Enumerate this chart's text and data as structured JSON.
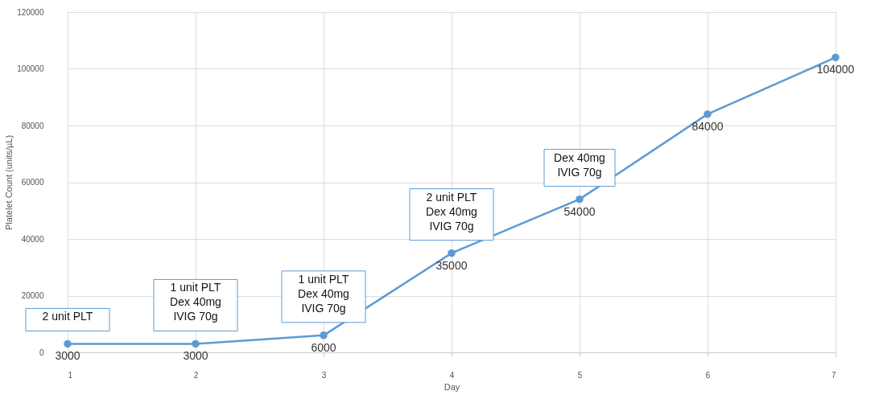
{
  "chart_data": {
    "type": "line",
    "xlabel": "Day",
    "ylabel": "Platelet Count (units/µL)",
    "x": [
      1,
      2,
      3,
      4,
      5,
      6,
      7
    ],
    "series": [
      {
        "color": "#5b9bd5",
        "values": [
          3000,
          3000,
          6000,
          35000,
          54000,
          84000,
          104000
        ]
      }
    ],
    "xlim": [
      1,
      7
    ],
    "xticks": [
      1,
      2,
      3,
      4,
      5,
      6,
      7
    ],
    "ylim": [
      0,
      120000
    ],
    "yticks": [
      0,
      20000,
      40000,
      60000,
      80000,
      100000,
      120000
    ],
    "grid": true,
    "legend": false,
    "marker": "circle",
    "line_style": "solid",
    "data_labels": true,
    "annotations": [
      {
        "text": "2 unit PLT",
        "x": 1,
        "y": 3000
      },
      {
        "text": "1 unit PLT\nDex 40mg\nIVIG 70g",
        "x": 2,
        "y": 3000
      },
      {
        "text": "1 unit PLT\nDex 40mg\nIVIG 70g",
        "x": 3,
        "y": 6000
      },
      {
        "text": "2 unit PLT\nDex 40mg\nIVIG 70g",
        "x": 4,
        "y": 35000
      },
      {
        "text": "Dex 40mg\nIVIG 70g",
        "x": 5,
        "y": 54000
      }
    ]
  }
}
